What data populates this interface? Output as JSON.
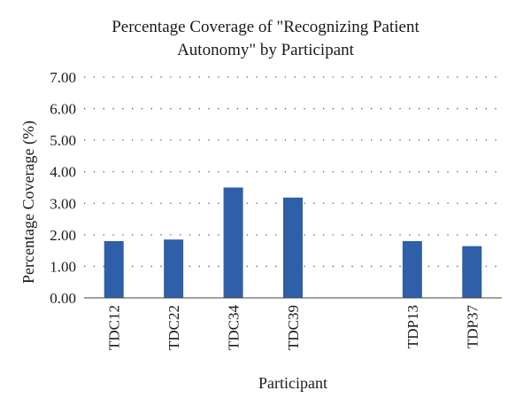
{
  "chart_data": {
    "type": "bar",
    "title_lines": [
      "Percentage Coverage of \"Recognizing Patient",
      "Autonomy\" by Participant"
    ],
    "xlabel": "Participant",
    "ylabel": "Percentage Coverage (%)",
    "categories": [
      "TDC12",
      "TDC22",
      "TDC34",
      "TDC39",
      "",
      "TDP13",
      "TDP37"
    ],
    "values": [
      1.8,
      1.85,
      3.5,
      3.18,
      null,
      1.8,
      1.64
    ],
    "ylim": [
      0,
      7
    ],
    "yticks": [
      "0.00",
      "1.00",
      "2.00",
      "3.00",
      "4.00",
      "5.00",
      "6.00",
      "7.00"
    ],
    "grid": "dotted horizontal",
    "bar_color": "#2e5fa8",
    "legend": "none"
  }
}
